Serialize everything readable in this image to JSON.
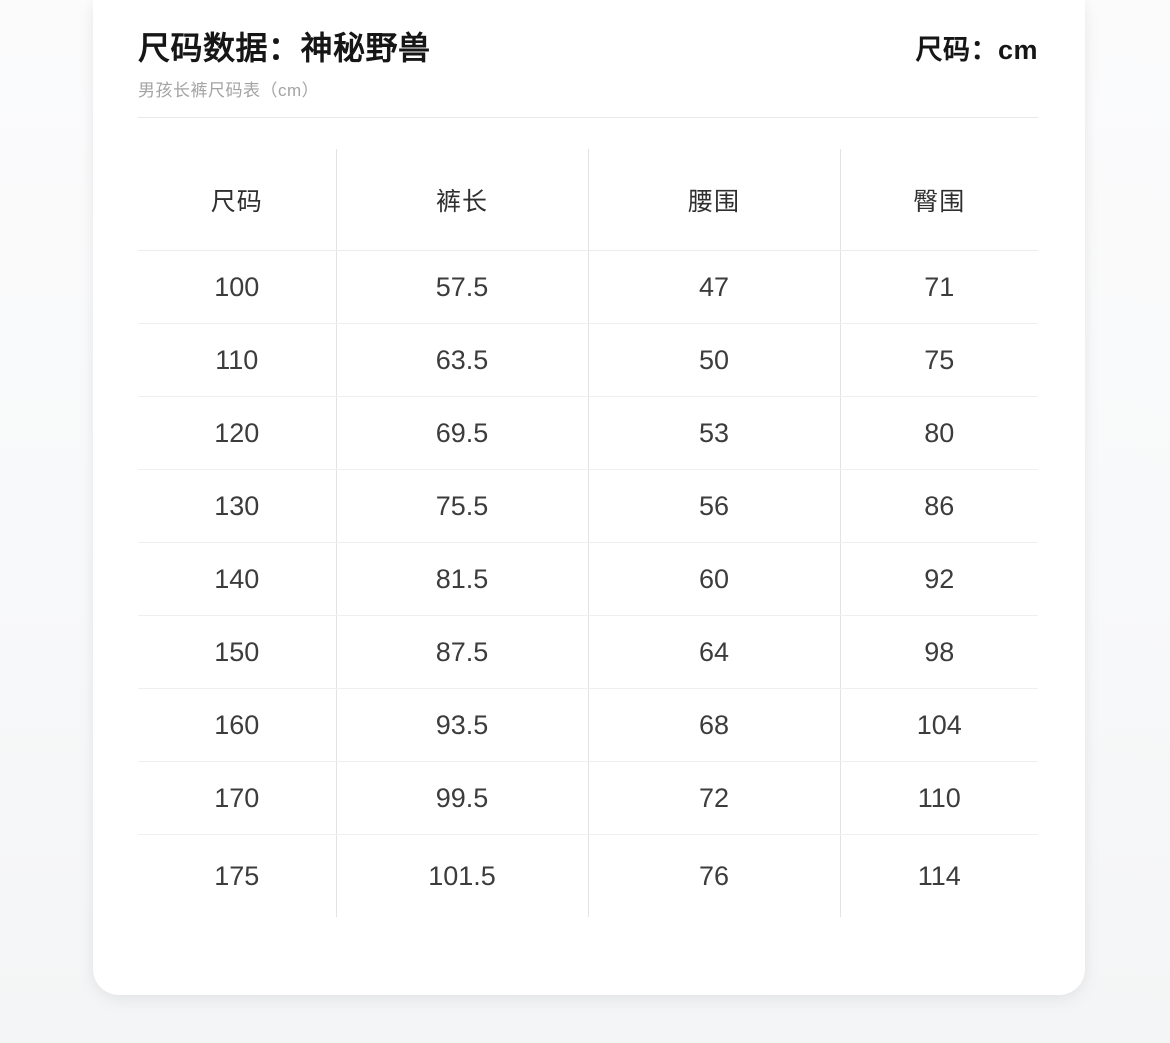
{
  "header": {
    "title": "尺码数据：神秘野兽",
    "unit_label": "尺码：cm",
    "subtitle": "男孩长裤尺码表（cm）"
  },
  "table": {
    "columns": [
      "尺码",
      "裤长",
      "腰围",
      "臀围"
    ],
    "rows": [
      [
        "100",
        "57.5",
        "47",
        "71"
      ],
      [
        "110",
        "63.5",
        "50",
        "75"
      ],
      [
        "120",
        "69.5",
        "53",
        "80"
      ],
      [
        "130",
        "75.5",
        "56",
        "86"
      ],
      [
        "140",
        "81.5",
        "60",
        "92"
      ],
      [
        "150",
        "87.5",
        "64",
        "98"
      ],
      [
        "160",
        "93.5",
        "68",
        "104"
      ],
      [
        "170",
        "99.5",
        "72",
        "110"
      ],
      [
        "175",
        "101.5",
        "76",
        "114"
      ]
    ]
  },
  "colors": {
    "page_background": "#f5f6f7",
    "card_background": "#ffffff",
    "title_text": "#161616",
    "subtitle_text": "#a3a3a3",
    "cell_text": "#3c3c3c",
    "horizontal_rule": "#efefef",
    "vertical_rule": "#e3e3e5"
  }
}
